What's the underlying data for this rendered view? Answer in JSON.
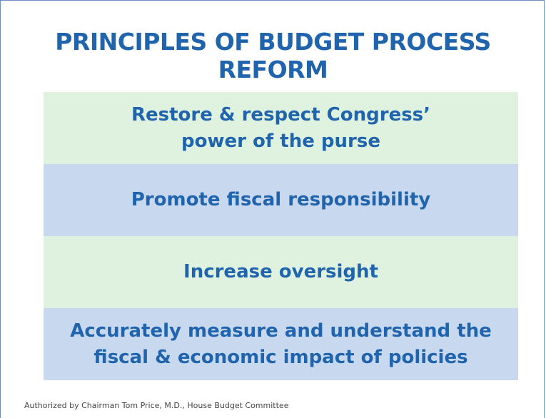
{
  "title": "PRINCIPLES OF BUDGET PROCESS REFORM",
  "principles": [
    [
      "Restore & respect Congress’",
      "power of the purse"
    ],
    [
      "Promote fiscal responsibility"
    ],
    [
      "Increase oversight"
    ],
    [
      "Accurately measure and understand the",
      "fiscal & economic impact of policies"
    ]
  ],
  "footer": "Authorized by Chairman Tom Price, M.D., House Budget Committee"
}
